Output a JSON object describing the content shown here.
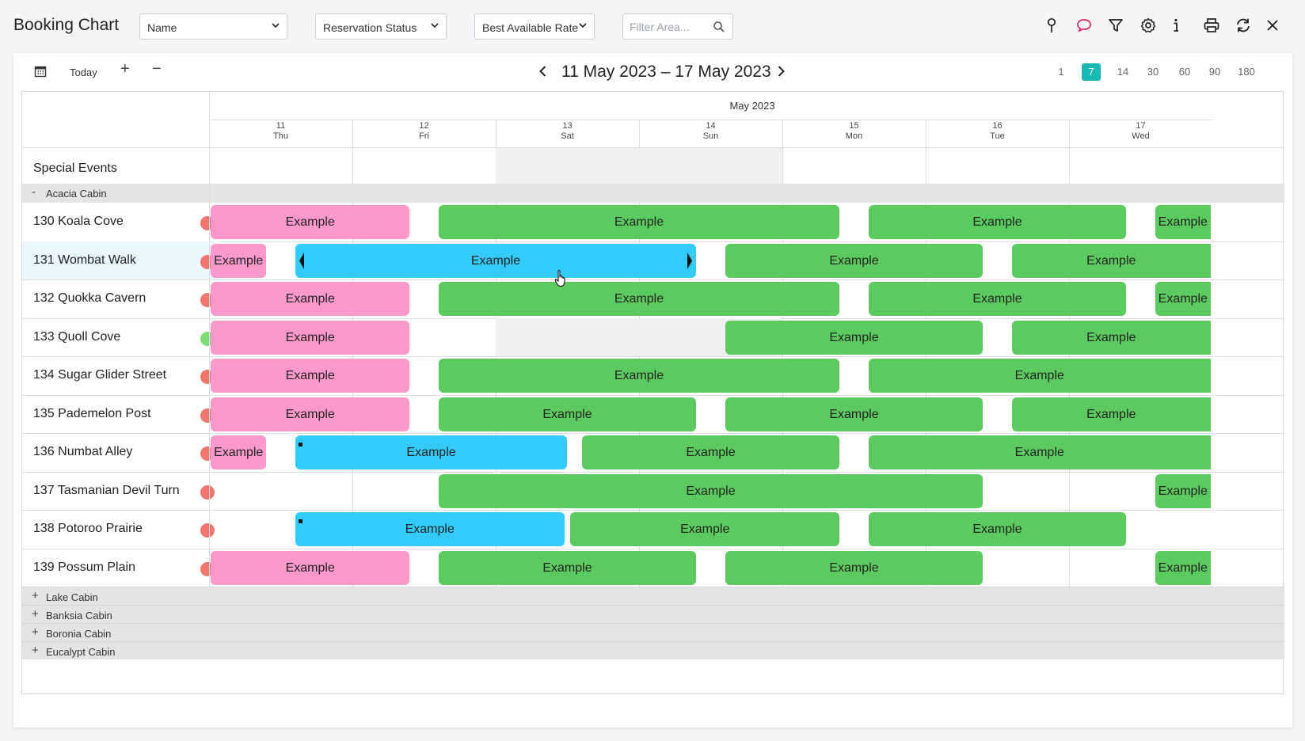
{
  "app": {
    "title": "Booking Chart",
    "filters": {
      "name_select": "Name",
      "status_select": "Reservation Status",
      "rate_select": "Best Available Rate",
      "filter_placeholder": "Filter Area..."
    },
    "toolbar_icons": [
      "pin-icon",
      "chat-icon",
      "filter-icon",
      "gear-icon",
      "info-icon",
      "print-icon",
      "refresh-icon",
      "close-icon"
    ]
  },
  "navigation": {
    "today_label": "Today",
    "plus_label": "+",
    "minus_label": "−",
    "date_range": "11 May 2023 – 17 May 2023",
    "day_options": [
      "1",
      "7",
      "14",
      "30",
      "60",
      "90",
      "180"
    ],
    "active_day_option": "7"
  },
  "calendar": {
    "month_label": "May 2023",
    "days": [
      {
        "num": "11",
        "dow": "Thu"
      },
      {
        "num": "12",
        "dow": "Fri"
      },
      {
        "num": "13",
        "dow": "Sat"
      },
      {
        "num": "14",
        "dow": "Sun"
      },
      {
        "num": "15",
        "dow": "Mon"
      },
      {
        "num": "16",
        "dow": "Tue"
      },
      {
        "num": "17",
        "dow": "Wed"
      }
    ],
    "special_events_label": "Special Events"
  },
  "colors": {
    "pink": "#fd98cb",
    "green": "#5ccb5f",
    "blue": "#33ccfa",
    "dot_red": "#f0766e",
    "dot_green": "#7ddf72",
    "accent": "#1ab8b2"
  },
  "groups": {
    "expanded": {
      "sign": "-",
      "name": "Acacia Cabin"
    },
    "collapsed": [
      {
        "sign": "+",
        "name": "Lake Cabin"
      },
      {
        "sign": "+",
        "name": "Banksia Cabin"
      },
      {
        "sign": "+",
        "name": "Boronia Cabin"
      },
      {
        "sign": "+",
        "name": "Eucalypt Cabin"
      }
    ]
  },
  "rooms": [
    {
      "name": "130 Koala Cove",
      "status": "red",
      "selected": false,
      "bookings": [
        {
          "label": "Example",
          "color": "pink",
          "start": 0,
          "end": 1.4
        },
        {
          "label": "Example",
          "color": "green",
          "start": 1.6,
          "end": 4.4
        },
        {
          "label": "Example",
          "color": "green",
          "start": 4.6,
          "end": 6.4
        },
        {
          "label": "Example",
          "color": "green",
          "start": 6.6,
          "end": 7.0
        }
      ]
    },
    {
      "name": "131 Wombat Walk",
      "status": "red",
      "selected": true,
      "bookings": [
        {
          "label": "Example",
          "color": "pink",
          "start": 0,
          "end": 0.4
        },
        {
          "label": "Example",
          "color": "blue",
          "start": 0.6,
          "end": 3.4,
          "handles": true
        },
        {
          "label": "Example",
          "color": "green",
          "start": 3.6,
          "end": 5.4
        },
        {
          "label": "Example",
          "color": "green",
          "start": 5.6,
          "end": 7.0
        }
      ]
    },
    {
      "name": "132 Quokka Cavern",
      "status": "red",
      "selected": false,
      "bookings": [
        {
          "label": "Example",
          "color": "pink",
          "start": 0,
          "end": 1.4
        },
        {
          "label": "Example",
          "color": "green",
          "start": 1.6,
          "end": 4.4
        },
        {
          "label": "Example",
          "color": "green",
          "start": 4.6,
          "end": 6.4
        },
        {
          "label": "Example",
          "color": "green",
          "start": 6.6,
          "end": 7.0
        }
      ]
    },
    {
      "name": "133 Quoll Cove",
      "status": "green",
      "selected": false,
      "bookings": [
        {
          "label": "Example",
          "color": "pink",
          "start": 0,
          "end": 1.4
        },
        {
          "label": "Example",
          "color": "green",
          "start": 3.6,
          "end": 5.4
        },
        {
          "label": "Example",
          "color": "green",
          "start": 5.6,
          "end": 7.0
        }
      ]
    },
    {
      "name": "134 Sugar Glider Street",
      "status": "red",
      "selected": false,
      "bookings": [
        {
          "label": "Example",
          "color": "pink",
          "start": 0,
          "end": 1.4
        },
        {
          "label": "Example",
          "color": "green",
          "start": 1.6,
          "end": 4.4
        },
        {
          "label": "Example",
          "color": "green",
          "start": 4.6,
          "end": 7.0
        }
      ]
    },
    {
      "name": "135 Pademelon Post",
      "status": "red",
      "selected": false,
      "bookings": [
        {
          "label": "Example",
          "color": "pink",
          "start": 0,
          "end": 1.4
        },
        {
          "label": "Example",
          "color": "green",
          "start": 1.6,
          "end": 3.4
        },
        {
          "label": "Example",
          "color": "green",
          "start": 3.6,
          "end": 5.4
        },
        {
          "label": "Example",
          "color": "green",
          "start": 5.6,
          "end": 7.0
        }
      ]
    },
    {
      "name": "136 Numbat Alley",
      "status": "red",
      "selected": false,
      "bookings": [
        {
          "label": "Example",
          "color": "pink",
          "start": 0,
          "end": 0.4
        },
        {
          "label": "Example",
          "color": "blue",
          "start": 0.6,
          "end": 2.5,
          "mark": true
        },
        {
          "label": "Example",
          "color": "green",
          "start": 2.6,
          "end": 4.4
        },
        {
          "label": "Example",
          "color": "green",
          "start": 4.6,
          "end": 7.0
        }
      ]
    },
    {
      "name": "137 Tasmanian Devil Turn",
      "status": "red",
      "selected": false,
      "bookings": [
        {
          "label": "Example",
          "color": "green",
          "start": 1.6,
          "end": 5.4
        },
        {
          "label": "Example",
          "color": "green",
          "start": 6.6,
          "end": 7.0
        }
      ]
    },
    {
      "name": "138 Potoroo Prairie",
      "status": "red",
      "selected": false,
      "bookings": [
        {
          "label": "Example",
          "color": "blue",
          "start": 0.6,
          "end": 2.48,
          "mark": true
        },
        {
          "label": "Example",
          "color": "green",
          "start": 2.52,
          "end": 4.4
        },
        {
          "label": "Example",
          "color": "green",
          "start": 4.6,
          "end": 6.4
        }
      ]
    },
    {
      "name": "139 Possum Plain",
      "status": "red",
      "selected": false,
      "bookings": [
        {
          "label": "Example",
          "color": "pink",
          "start": 0,
          "end": 1.4
        },
        {
          "label": "Example",
          "color": "green",
          "start": 1.6,
          "end": 3.4
        },
        {
          "label": "Example",
          "color": "green",
          "start": 3.6,
          "end": 5.4
        },
        {
          "label": "Example",
          "color": "green",
          "start": 6.6,
          "end": 7.0
        }
      ]
    }
  ]
}
